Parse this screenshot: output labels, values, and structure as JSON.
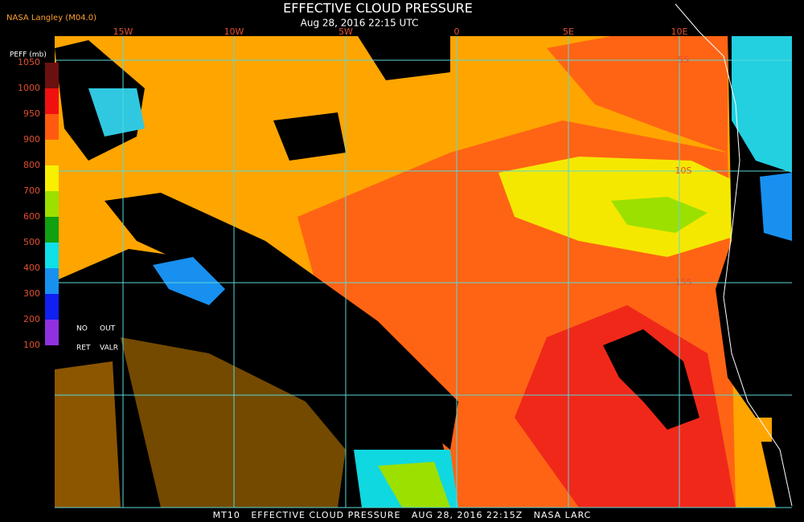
{
  "header": {
    "title": "EFFECTIVE CLOUD PRESSURE",
    "subtitle": "Aug 28, 2016 22:15 UTC",
    "source": "NASA Langley (M04.0)"
  },
  "legend": {
    "title": "PEFF (mb)",
    "ticks": [
      "1050",
      "1000",
      "950",
      "900",
      "800",
      "700",
      "600",
      "500",
      "400",
      "300",
      "200",
      "100"
    ],
    "colors": [
      "#6b1010",
      "#f01010",
      "#ff5a10",
      "#ffa500",
      "#f8f000",
      "#9ce000",
      "#10a010",
      "#10e0e8",
      "#1890f0",
      "#1020f0",
      "#9030e0"
    ],
    "notes": [
      "NO",
      "OUT",
      "RET",
      "VALR"
    ]
  },
  "map": {
    "lon_labels": [
      "15W",
      "10W",
      "5W",
      "0",
      "5E",
      "10E"
    ],
    "lat_labels": [
      "5S",
      "10S",
      "15S"
    ]
  },
  "footer": "MT10   EFFECTIVE CLOUD PRESSURE   AUG 28, 2016 22:15Z   NASA LARC"
}
